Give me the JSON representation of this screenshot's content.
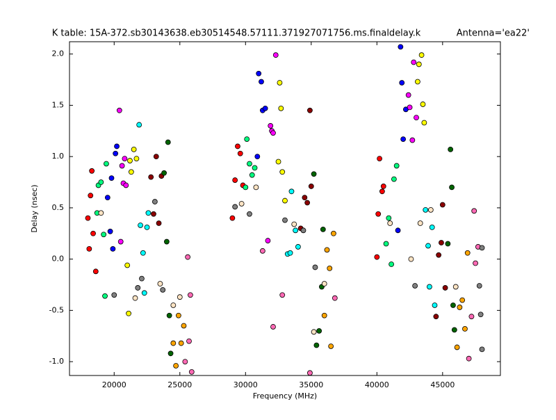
{
  "chart_data": {
    "type": "scatter",
    "title": "K table: 15A-372.sb30143638.eb30514548.57111.371927071756.ms.finaldelay.k",
    "subtitle": "Antenna='ea22'",
    "x_label": "Frequency (MHz)",
    "y_label": "Delay (nsec)",
    "xlim": [
      16600,
      49400
    ],
    "ylim": [
      -1.135,
      2.12
    ],
    "xticks": [
      20000,
      25000,
      30000,
      35000,
      40000,
      45000
    ],
    "yticks": [
      {
        "value": -1,
        "label": "-1.0"
      },
      -0.5,
      {
        "value": 0,
        "label": "0.0"
      },
      0.5,
      {
        "value": 1,
        "label": "1.0"
      },
      1.5,
      {
        "value": 2,
        "label": "2.0"
      }
    ],
    "grid": false,
    "marker_edge_color": "#000000",
    "series": [
      {
        "color": "#ff0000",
        "x": [
          18000,
          18100,
          18200,
          18300,
          18400,
          18600,
          29000,
          29200,
          29400,
          29600,
          29800,
          40000,
          40100,
          40200,
          40400,
          40500
        ],
        "values": [
          0.4,
          0.1,
          0.62,
          0.86,
          0.25,
          -0.12,
          0.4,
          0.77,
          1.1,
          1.03,
          0.72,
          0.02,
          0.44,
          0.98,
          0.66,
          0.71
        ]
      },
      {
        "color": "#00ff7f",
        "x": [
          18700,
          18800,
          19000,
          19200,
          19300,
          19400,
          30000,
          30100,
          30300,
          30500,
          30700,
          40700,
          40900,
          41100,
          41300,
          41500
        ],
        "values": [
          0.45,
          0.72,
          0.75,
          0.24,
          -0.36,
          0.93,
          0.7,
          1.17,
          0.93,
          0.82,
          0.89,
          0.15,
          0.4,
          -0.05,
          0.78,
          0.91
        ]
      },
      {
        "color": "#0000ff",
        "x": [
          19500,
          19700,
          19800,
          19900,
          20100,
          20200,
          30900,
          31000,
          31200,
          31300,
          31500,
          41600,
          41800,
          41900,
          42000,
          42200
        ],
        "values": [
          0.6,
          0.27,
          0.79,
          0.1,
          1.03,
          1.1,
          1.0,
          1.81,
          1.73,
          1.45,
          1.47,
          0.28,
          2.07,
          1.72,
          1.17,
          1.46
        ]
      },
      {
        "color": "#ff00ff",
        "x": [
          20400,
          20500,
          20600,
          20700,
          20800,
          20900,
          31700,
          31900,
          32000,
          32100,
          32300,
          42400,
          42500,
          42700,
          42800,
          43000
        ],
        "values": [
          1.45,
          0.17,
          0.91,
          0.74,
          0.98,
          0.72,
          0.18,
          1.3,
          1.25,
          1.23,
          1.99,
          1.6,
          1.48,
          1.16,
          1.92,
          1.38
        ]
      },
      {
        "color": "#ffff00",
        "x": [
          21000,
          21100,
          21200,
          21300,
          21500,
          21700,
          32500,
          32600,
          32700,
          32800,
          33000,
          43100,
          43200,
          43400,
          43500,
          43600
        ],
        "values": [
          -0.06,
          -0.53,
          0.96,
          0.85,
          1.07,
          0.98,
          0.95,
          1.72,
          1.47,
          0.85,
          0.57,
          1.73,
          1.9,
          1.99,
          1.51,
          1.33
        ]
      },
      {
        "color": "#00ffff",
        "x": [
          21900,
          22000,
          22200,
          22300,
          22500,
          22600,
          33200,
          33400,
          33500,
          33800,
          34000,
          43700,
          43900,
          44000,
          44200,
          44400
        ],
        "values": [
          1.31,
          0.33,
          0.06,
          -0.33,
          0.31,
          0.45,
          0.05,
          0.06,
          0.66,
          0.28,
          0.12,
          0.48,
          0.13,
          -0.27,
          0.31,
          -0.45
        ]
      },
      {
        "color": "#8b0000",
        "x": [
          22800,
          23000,
          23200,
          23400,
          23600,
          34200,
          34500,
          34700,
          34900,
          35000,
          44500,
          44700,
          44900,
          45000,
          45200
        ],
        "values": [
          0.8,
          0.44,
          1.0,
          0.35,
          0.81,
          0.3,
          0.6,
          0.55,
          1.45,
          0.71,
          -0.56,
          0.04,
          0.16,
          0.53,
          -0.28
        ]
      },
      {
        "color": "#006400",
        "x": [
          23800,
          24000,
          24100,
          24200,
          24300,
          35200,
          35400,
          35600,
          35800,
          35900,
          45400,
          45600,
          45700,
          45800,
          45900
        ],
        "values": [
          0.84,
          0.17,
          1.14,
          -0.55,
          -0.92,
          0.83,
          -0.84,
          -0.7,
          -0.27,
          0.29,
          0.15,
          1.07,
          0.7,
          -0.45,
          -0.69
        ]
      },
      {
        "color": "#ffa500",
        "x": [
          24500,
          24700,
          24900,
          25100,
          25300,
          36000,
          36200,
          36400,
          36500,
          36700,
          46100,
          46300,
          46500,
          46700,
          46900
        ],
        "values": [
          -0.82,
          -1.04,
          -0.55,
          -0.82,
          -0.65,
          -0.55,
          0.09,
          -0.09,
          -0.85,
          0.25,
          -0.86,
          -0.47,
          -0.4,
          -0.68,
          0.06
        ]
      },
      {
        "color": "#ff69b4",
        "x": [
          25400,
          25600,
          25800,
          25900,
          25700,
          36800,
          32100,
          34900,
          32800,
          31300,
          47000,
          47200,
          47400,
          47500,
          47700
        ],
        "values": [
          -1.0,
          0.02,
          -0.35,
          -1.1,
          -0.8,
          -0.38,
          -0.66,
          -1.11,
          -0.35,
          0.08,
          -0.97,
          -0.56,
          0.47,
          -0.04,
          0.12
        ]
      },
      {
        "color": "#808080",
        "x": [
          21800,
          22100,
          23100,
          23700,
          20000,
          30300,
          29200,
          33000,
          34400,
          35300,
          47800,
          47900,
          48000,
          48000,
          42900
        ],
        "values": [
          -0.28,
          -0.19,
          0.56,
          -0.3,
          -0.35,
          0.44,
          0.51,
          0.38,
          0.28,
          -0.08,
          -0.26,
          -0.54,
          -0.88,
          0.11,
          -0.26
        ]
      },
      {
        "color": "#ffe4c4",
        "x": [
          19000,
          24500,
          25000,
          23500,
          21600,
          33700,
          36000,
          35200,
          30800,
          29700,
          43300,
          44100,
          46000,
          41000,
          42600
        ],
        "values": [
          0.45,
          -0.45,
          -0.37,
          -0.24,
          -0.38,
          0.34,
          -0.24,
          -0.71,
          0.7,
          0.54,
          0.35,
          0.48,
          -0.27,
          0.35,
          0.0
        ]
      }
    ]
  }
}
